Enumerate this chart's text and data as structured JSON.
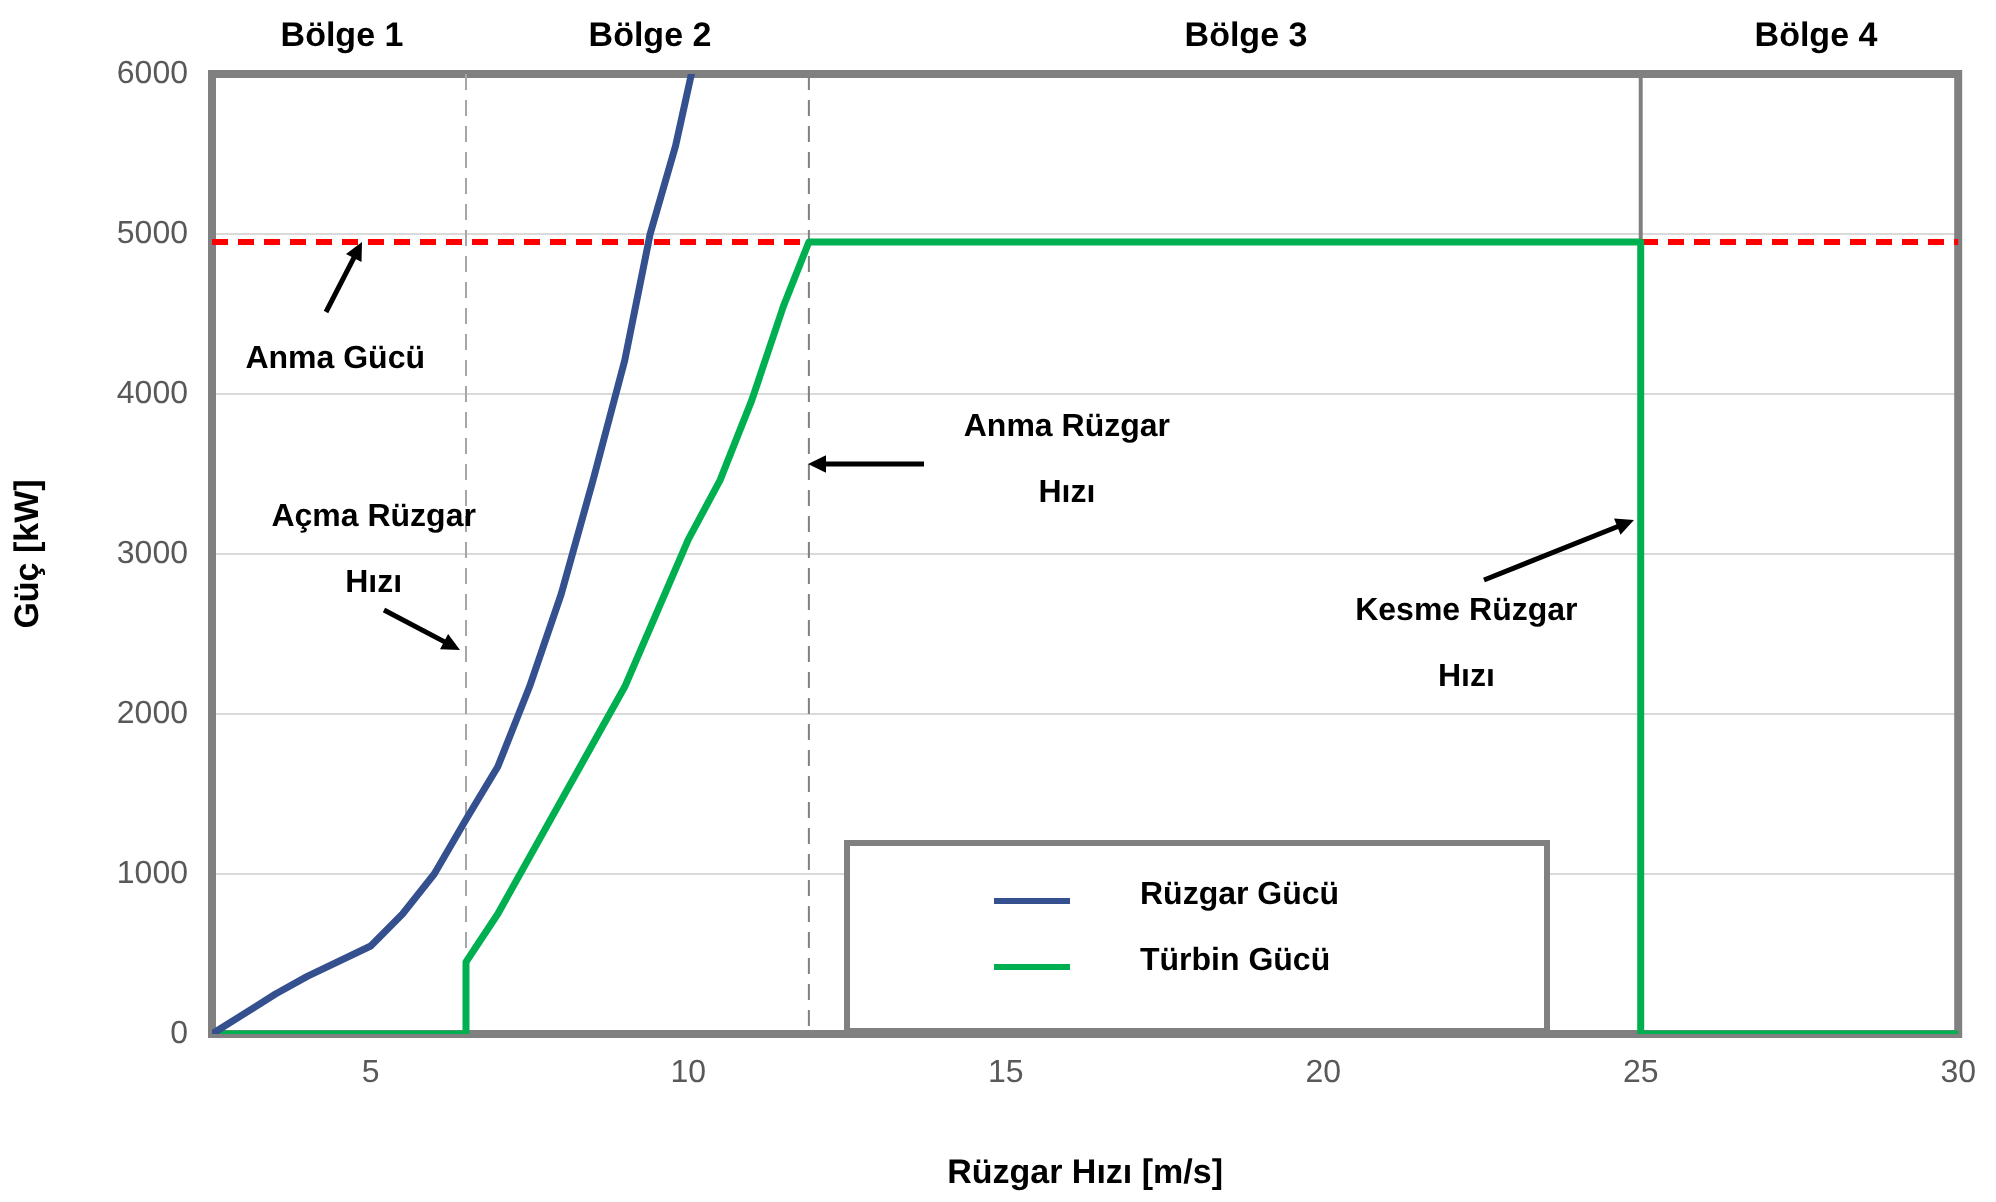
{
  "chart_data": {
    "type": "line",
    "xlabel": "Rüzgar Hızı [m/s]",
    "ylabel": "Güç [kW]",
    "xlim": [
      2.5,
      30
    ],
    "xticks": [
      5,
      10,
      15,
      20,
      25,
      30
    ],
    "ylim": [
      0,
      6000
    ],
    "yticks": [
      0,
      1000,
      2000,
      3000,
      4000,
      5000,
      6000
    ],
    "grid": "y",
    "legend": "bottom",
    "marker": "none",
    "line_style": "solid",
    "series": [
      {
        "name": "Rüzgar Gücü",
        "color": "#34508f",
        "x": [
          2.5,
          3.5,
          4,
          5,
          5.5,
          6,
          6.5,
          7,
          7.5,
          8,
          8.5,
          9,
          9.4,
          9.8,
          10.05
        ],
        "values": [
          0,
          250,
          360,
          550,
          750,
          1000,
          1340,
          1670,
          2170,
          2750,
          3460,
          4210,
          5000,
          5550,
          6000
        ]
      },
      {
        "name": "Türbin Gücü",
        "color": "#00b050",
        "x": [
          2.5,
          6.5,
          6.5,
          7,
          8,
          9,
          10,
          10.5,
          11,
          11.5,
          11.9,
          25,
          25,
          30
        ],
        "values": [
          0,
          0,
          450,
          750,
          1460,
          2170,
          3090,
          3460,
          3960,
          4550,
          4950,
          4950,
          0,
          0
        ]
      }
    ],
    "ref_lines": [
      {
        "axis": "y",
        "value": 4950,
        "color": "#ff0000",
        "line_style": "dashed"
      },
      {
        "axis": "x",
        "value": 6.5,
        "color": "#a6a6a6",
        "line_style": "dashed"
      },
      {
        "axis": "x",
        "value": 11.9,
        "color": "#808080",
        "line_style": "dashed"
      },
      {
        "axis": "x",
        "value": 25,
        "color": "#808080",
        "line_style": "solid"
      }
    ],
    "annotations": [
      "Bölge 1",
      "Bölge 2",
      "Bölge 3",
      "Bölge 4",
      {
        "text": "Anma Gücü",
        "x": 4.85,
        "y": 4950
      },
      {
        "text": "Açma Rüzgar Hızı",
        "x": 6.4,
        "y": 2400
      },
      {
        "text": "Anma Rüzgar Hızı",
        "x": 11.9,
        "y": 3560
      },
      {
        "text": "Kesme Rüzgar Hızı",
        "x": 24.9,
        "y": 3210
      }
    ]
  }
}
